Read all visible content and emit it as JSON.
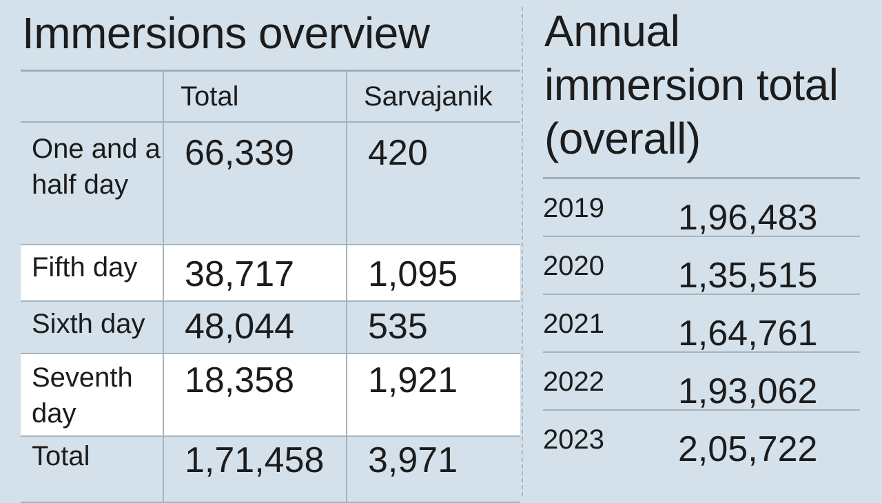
{
  "chart_data": [
    {
      "type": "table",
      "title": "Immersions overview",
      "columns": [
        "",
        "Total",
        "Sarvajanik"
      ],
      "rows": [
        {
          "label": "One and a half day",
          "total": "66,339",
          "sarvajanik": "420"
        },
        {
          "label": "Fifth day",
          "total": "38,717",
          "sarvajanik": "1,095"
        },
        {
          "label": "Sixth day",
          "total": "48,044",
          "sarvajanik": "535"
        },
        {
          "label": "Seventh day",
          "total": "18,358",
          "sarvajanik": "1,921"
        },
        {
          "label": "Total",
          "total": "1,71,458",
          "sarvajanik": "3,971"
        }
      ]
    },
    {
      "type": "table",
      "title": "Annual immersion total (overall)",
      "rows": [
        {
          "year": "2019",
          "value": "1,96,483"
        },
        {
          "year": "2020",
          "value": "1,35,515"
        },
        {
          "year": "2021",
          "value": "1,64,761"
        },
        {
          "year": "2022",
          "value": "1,93,062"
        },
        {
          "year": "2023",
          "value": "2,05,722"
        }
      ]
    }
  ],
  "colors": {
    "background": "#d4e1ea",
    "highlight_row": "#ffffff",
    "rule": "#a3b4bf"
  }
}
